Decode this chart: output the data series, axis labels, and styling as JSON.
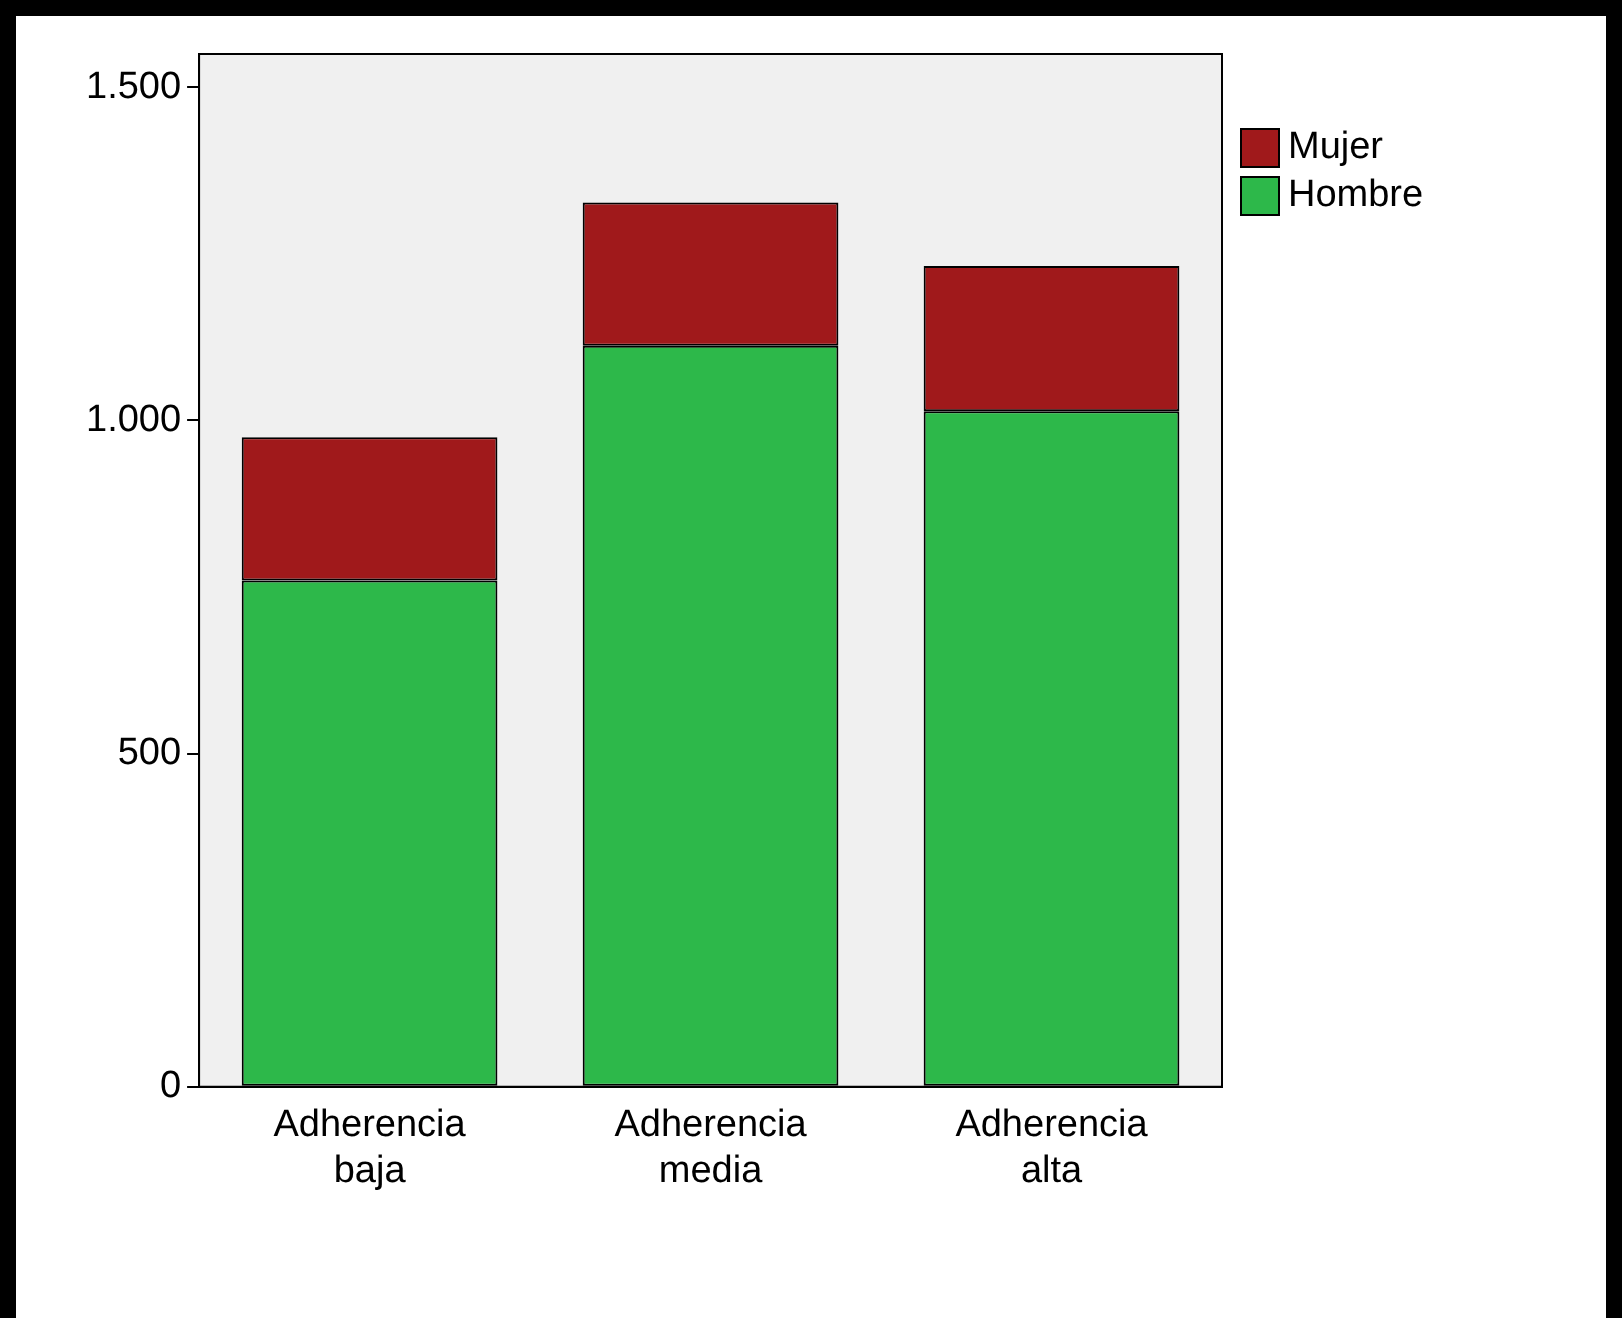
{
  "chart_data": {
    "type": "bar",
    "stacked": true,
    "categories": [
      "Adherencia baja",
      "Adherencia media",
      "Adherencia alta"
    ],
    "series": [
      {
        "name": "Hombre",
        "color": "#2db84a",
        "values": [
          760,
          1112,
          1014
        ]
      },
      {
        "name": "Mujer",
        "color": "#a0191b",
        "values": [
          215,
          215,
          218
        ]
      }
    ],
    "ylim": [
      0,
      1550
    ],
    "yticks": [
      0,
      500,
      {
        "value": 1000,
        "label": "1.000"
      },
      {
        "value": 1500,
        "label": "1.500"
      }
    ],
    "grid": false,
    "legend": "top right"
  }
}
